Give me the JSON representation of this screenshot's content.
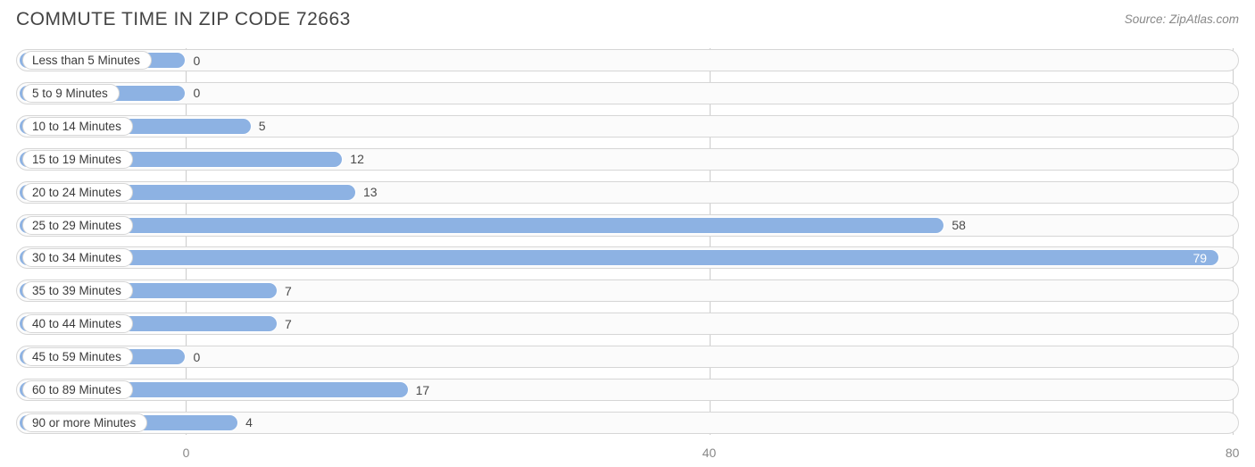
{
  "title": "COMMUTE TIME IN ZIP CODE 72663",
  "source": "Source: ZipAtlas.com",
  "chart": {
    "type": "bar",
    "orientation": "horizontal",
    "bar_color": "#8db2e3",
    "bar_border_color": "#ffffff",
    "track_border_color": "#d6d6d6",
    "track_background": "#fbfbfb",
    "grid_color": "#cccccc",
    "title_color": "#444444",
    "source_color": "#888888",
    "tick_color": "#888888",
    "value_label_outside_color": "#4a4a4a",
    "value_label_inside_color": "#ffffff",
    "category_label_color": "#3b3b3b",
    "title_fontsize": 21,
    "label_fontsize": 13.5,
    "value_fontsize": 14,
    "tick_fontsize": 14,
    "x_min": -13,
    "x_max": 80.5,
    "x_ticks": [
      0,
      40,
      80
    ],
    "bar_origin": -12,
    "categories": [
      "Less than 5 Minutes",
      "5 to 9 Minutes",
      "10 to 14 Minutes",
      "15 to 19 Minutes",
      "20 to 24 Minutes",
      "25 to 29 Minutes",
      "30 to 34 Minutes",
      "35 to 39 Minutes",
      "40 to 44 Minutes",
      "45 to 59 Minutes",
      "60 to 89 Minutes",
      "90 or more Minutes"
    ],
    "values": [
      0,
      0,
      5,
      12,
      13,
      58,
      79,
      7,
      7,
      0,
      17,
      4
    ]
  }
}
